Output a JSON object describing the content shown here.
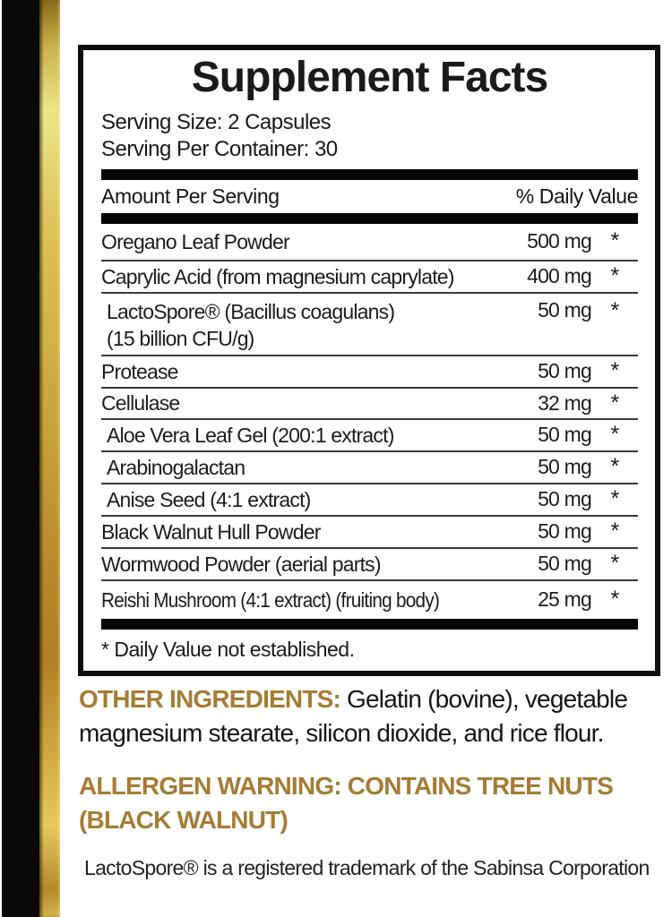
{
  "colors": {
    "accent_gold_text": "#a57c33",
    "stripe_gold_light": "#ede585",
    "stripe_gold_dark": "#b07f24",
    "bar_black": "#050505"
  },
  "label": {
    "title": "Supplement Facts",
    "serving_size": "Serving Size: 2 Capsules",
    "serving_per_container": "Serving Per Container: 30",
    "col_amount": "Amount Per Serving",
    "col_dv": "% Daily Value",
    "rows": [
      {
        "name": "Oregano Leaf Powder",
        "amount": "500 mg",
        "dv": "*"
      },
      {
        "name": "Caprylic Acid (from magnesium caprylate)",
        "amount": "400 mg",
        "dv": "*"
      },
      {
        "name": "LactoSpore® (Bacillus coagulans)",
        "name2": "(15 billion CFU/g)",
        "amount": "50 mg",
        "dv": "*"
      },
      {
        "name": "Protease",
        "amount": "50 mg",
        "dv": "*"
      },
      {
        "name": "Cellulase",
        "amount": "32 mg",
        "dv": "*"
      },
      {
        "name": "Aloe Vera Leaf Gel (200:1 extract)",
        "amount": "50 mg",
        "dv": "*"
      },
      {
        "name": "Arabinogalactan",
        "amount": "50 mg",
        "dv": "*"
      },
      {
        "name": "Anise Seed (4:1 extract)",
        "amount": "50 mg",
        "dv": "*"
      },
      {
        "name": "Black Walnut Hull Powder",
        "amount": "50 mg",
        "dv": "*"
      },
      {
        "name": "Wormwood Powder (aerial parts)",
        "amount": "50 mg",
        "dv": "*"
      },
      {
        "name": "Reishi Mushroom (4:1 extract) (fruiting body)",
        "amount": "25 mg",
        "dv": "*"
      }
    ],
    "footnote": "* Daily Value not established."
  },
  "footer": {
    "other_ingredients_label": "OTHER INGREDIENTS:",
    "other_ingredients_text": " Gelatin (bovine), vegetable magnesium stearate, silicon dioxide, and rice flour.",
    "allergen_warning": "ALLERGEN WARNING: CONTAINS TREE NUTS (BLACK WALNUT)",
    "trademark_note": "LactoSpore® is a registered trademark of the Sabinsa Corporation"
  }
}
